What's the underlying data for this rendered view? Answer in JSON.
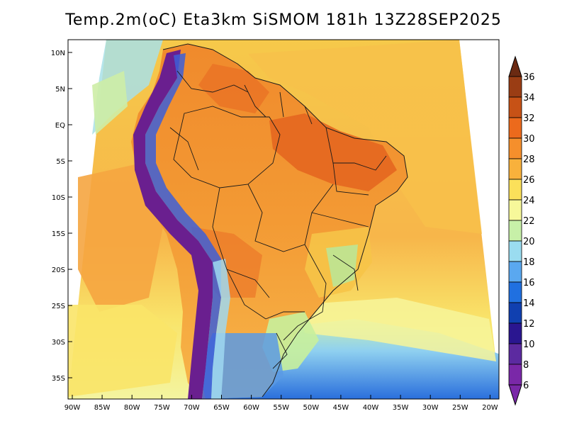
{
  "title": "Temp.2m(oC) Eta3km SiSMOM 181h 13Z28SEP2025",
  "colors": {
    "ocean_deep": "#f5c542",
    "ocean_warm": "#f8b14a",
    "land_warm": "#f08a2c",
    "land_hot": "#e8661e",
    "andes": "#6a1f8f",
    "south_cold": "#4a8fe0"
  },
  "axes": {
    "lat_labels": [
      "10N",
      "5N",
      "EQ",
      "5S",
      "10S",
      "15S",
      "20S",
      "25S",
      "30S",
      "35S"
    ],
    "lon_labels": [
      "90W",
      "85W",
      "80W",
      "75W",
      "70W",
      "65W",
      "60W",
      "55W",
      "50W",
      "45W",
      "40W",
      "35W",
      "30W",
      "25W",
      "20W"
    ]
  },
  "colorbar": {
    "labels": [
      "36",
      "34",
      "32",
      "30",
      "28",
      "26",
      "24",
      "22",
      "20",
      "18",
      "16",
      "14",
      "12",
      "10",
      "8",
      "6"
    ],
    "colors": [
      "#6b2a12",
      "#9a3d14",
      "#c75216",
      "#ec6a1c",
      "#f58f2c",
      "#f8b13c",
      "#fbe05a",
      "#f7f89a",
      "#c7f0a8",
      "#9adcf0",
      "#5aa8f0",
      "#2070e0",
      "#1040b0",
      "#2a1690",
      "#5c2aa0",
      "#7a28a8"
    ]
  }
}
